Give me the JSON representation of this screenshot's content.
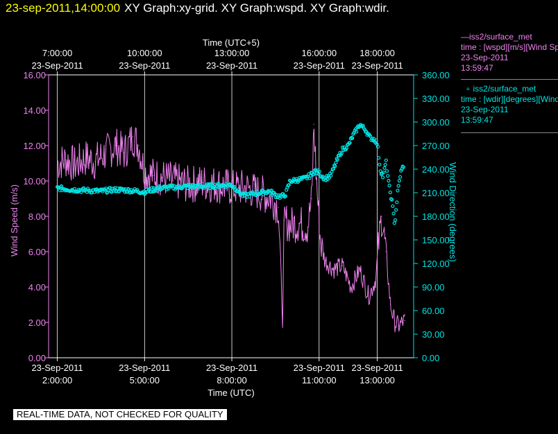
{
  "header": {
    "datetime": "23-sep-2011,14:00:00",
    "titles": "XY Graph:xy-grid.  XY Graph:wspd.  XY Graph:wdir."
  },
  "legend": {
    "series1": {
      "line1": "iss2/surface_met",
      "line2": "time : [wspd][m/s][Wind Speed]",
      "line3": "23-Sep-2011",
      "line4": "13:59:47"
    },
    "series2": {
      "line1": "iss2/surface_met",
      "line2": "time : [wdir][degrees][Wind Direction]",
      "line3": "23-Sep-2011",
      "line4": "13:59:47"
    }
  },
  "footer": {
    "quality_note": "REAL-TIME DATA, NOT CHECKED FOR QUALITY"
  },
  "colors": {
    "wspd": "#ee82ee",
    "wdir": "#00e5e5",
    "grid": "#ffffff",
    "date": "#ffff00"
  },
  "chart_data": {
    "type": "line",
    "top_axis": {
      "title": "Time (UTC+5)",
      "ticks": [
        {
          "time": "7:00:00",
          "date": "23-Sep-2011"
        },
        {
          "time": "10:00:00",
          "date": "23-Sep-2011"
        },
        {
          "time": "13:00:00",
          "date": "23-Sep-2011"
        },
        {
          "time": "16:00:00",
          "date": "23-Sep-2011"
        },
        {
          "time": "18:00:00",
          "date": "23-Sep-2011"
        }
      ]
    },
    "bottom_axis": {
      "title": "Time (UTC)",
      "xlim": [
        1.7,
        14.25
      ],
      "ticks": [
        {
          "x": 2,
          "date": "23-Sep-2011",
          "time": "2:00:00"
        },
        {
          "x": 5,
          "date": "23-Sep-2011",
          "time": "5:00:00"
        },
        {
          "x": 8,
          "date": "23-Sep-2011",
          "time": "8:00:00"
        },
        {
          "x": 11,
          "date": "23-Sep-2011",
          "time": "11:00:00"
        },
        {
          "x": 13,
          "date": "23-Sep-2011",
          "time": "13:00:00"
        }
      ]
    },
    "y_left": {
      "label": "Wind Speed (m/s)",
      "ylim": [
        0,
        16
      ],
      "ticks": [
        "0.00",
        "2.00",
        "4.00",
        "6.00",
        "8.00",
        "10.00",
        "12.00",
        "14.00",
        "16.00"
      ]
    },
    "y_right": {
      "label": "Wind Direction (degrees)",
      "ylim": [
        0,
        360
      ],
      "ticks": [
        "0.00",
        "30.00",
        "60.00",
        "90.00",
        "120.00",
        "150.00",
        "180.00",
        "210.00",
        "240.00",
        "270.00",
        "300.00",
        "330.00",
        "360.00"
      ]
    },
    "grid": "vertical lines at bottom-axis ticks",
    "series": [
      {
        "name": "iss2/surface_met wspd",
        "axis": "left",
        "x": [
          2.0,
          2.3,
          2.6,
          3.0,
          3.3,
          3.6,
          4.0,
          4.3,
          4.6,
          4.8,
          5.0,
          5.3,
          5.6,
          6.0,
          6.5,
          7.0,
          7.5,
          8.0,
          8.5,
          9.0,
          9.4,
          9.6,
          9.75,
          9.8,
          10.0,
          10.3,
          10.6,
          10.75,
          10.82,
          10.88,
          10.95,
          11.05,
          11.2,
          11.5,
          11.8,
          12.1,
          12.4,
          12.7,
          12.85,
          12.95,
          13.05,
          13.15,
          13.3,
          13.45,
          13.6,
          13.75,
          13.85,
          13.95
        ],
        "y": [
          11.0,
          11.2,
          10.9,
          11.3,
          11.1,
          11.5,
          12.0,
          11.6,
          12.5,
          12.0,
          10.5,
          10.3,
          10.2,
          10.0,
          9.8,
          9.9,
          9.8,
          9.6,
          9.6,
          9.3,
          9.0,
          8.5,
          2.0,
          7.8,
          7.5,
          7.6,
          7.4,
          9.0,
          13.2,
          11.0,
          9.0,
          6.5,
          5.5,
          5.0,
          5.2,
          4.0,
          5.0,
          3.5,
          4.0,
          4.5,
          6.5,
          8.0,
          6.0,
          3.0,
          2.0,
          1.8,
          2.0,
          2.1
        ]
      },
      {
        "name": "iss2/surface_met wdir",
        "axis": "right",
        "x": [
          2.0,
          2.5,
          3.0,
          3.5,
          4.0,
          4.5,
          5.0,
          5.5,
          6.0,
          6.5,
          7.0,
          7.5,
          8.0,
          8.4,
          8.8,
          9.0,
          9.3,
          9.5,
          9.7,
          9.85,
          10.0,
          10.2,
          10.5,
          10.7,
          10.85,
          11.0,
          11.2,
          11.4,
          11.6,
          11.8,
          12.0,
          12.2,
          12.4,
          12.6,
          12.75,
          12.9,
          13.0,
          13.1,
          13.2,
          13.3,
          13.4,
          13.5,
          13.6,
          13.7,
          13.8,
          13.9
        ],
        "y": [
          216,
          214,
          213,
          212,
          214,
          213,
          211,
          216,
          217,
          218,
          218,
          219,
          220,
          206,
          209,
          210,
          212,
          207,
          205,
          208,
          225,
          226,
          228,
          232,
          238,
          235,
          228,
          232,
          250,
          265,
          270,
          285,
          297,
          290,
          280,
          278,
          273,
          240,
          230,
          250,
          220,
          200,
          170,
          210,
          235,
          245
        ]
      }
    ]
  }
}
